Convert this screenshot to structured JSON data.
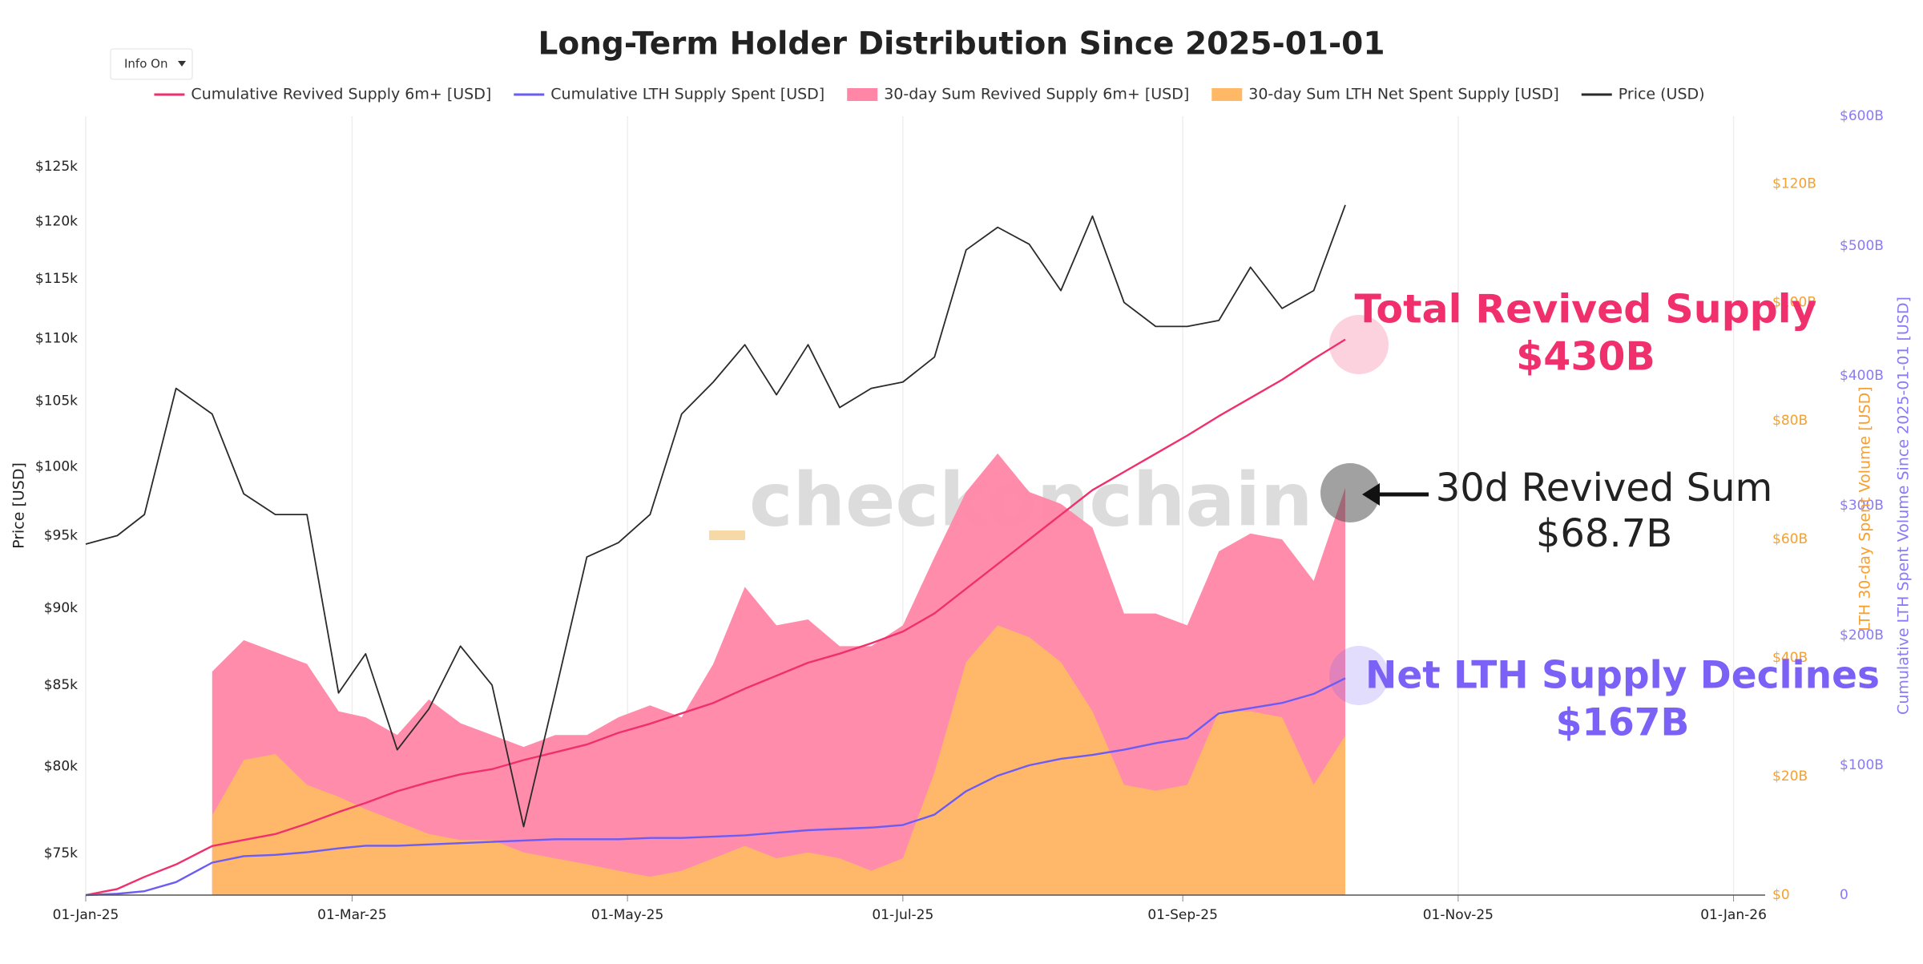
{
  "chart_data": {
    "type": "line",
    "title": "Long-Term Holder Distribution Since 2025-01-01",
    "controls": {
      "info_toggle": "Info On"
    },
    "watermark": "checkonchain",
    "log_y": true,
    "ylabel": "Price [USD]",
    "y2label": "LTH 30-day Spent Volume [USD]",
    "y3label": "Cumulative LTH Spent Volume Since 2025-01-01 [USD]",
    "x": [
      "2025-01-01",
      "2025-01-08",
      "2025-01-14",
      "2025-01-21",
      "2025-01-29",
      "2025-02-05",
      "2025-02-12",
      "2025-02-19",
      "2025-02-26",
      "2025-03-04",
      "2025-03-11",
      "2025-03-18",
      "2025-03-25",
      "2025-04-01",
      "2025-04-08",
      "2025-04-15",
      "2025-04-22",
      "2025-04-29",
      "2025-05-06",
      "2025-05-13",
      "2025-05-20",
      "2025-05-27",
      "2025-06-03",
      "2025-06-10",
      "2025-06-17",
      "2025-06-24",
      "2025-07-01",
      "2025-07-08",
      "2025-07-15",
      "2025-07-22",
      "2025-07-29",
      "2025-08-05",
      "2025-08-12",
      "2025-08-19",
      "2025-08-26",
      "2025-09-02",
      "2025-09-09",
      "2025-09-16",
      "2025-09-23",
      "2025-09-30",
      "2025-10-07"
    ],
    "xlim": [
      "2025-01-01",
      "2026-01-08"
    ],
    "xticks": [
      {
        "value": "2025-01-01",
        "label": "01-Jan-25"
      },
      {
        "value": "2025-03-01",
        "label": "01-Mar-25"
      },
      {
        "value": "2025-05-01",
        "label": "01-May-25"
      },
      {
        "value": "2025-07-01",
        "label": "01-Jul-25"
      },
      {
        "value": "2025-09-01",
        "label": "01-Sep-25"
      },
      {
        "value": "2025-11-01",
        "label": "01-Nov-25"
      },
      {
        "value": "2026-01-01",
        "label": "01-Jan-26"
      }
    ],
    "ylim": [
      72700,
      129800
    ],
    "yticks": [
      {
        "value": 75000,
        "label": "$75k"
      },
      {
        "value": 80000,
        "label": "$80k"
      },
      {
        "value": 85000,
        "label": "$85k"
      },
      {
        "value": 90000,
        "label": "$90k"
      },
      {
        "value": 95000,
        "label": "$95k"
      },
      {
        "value": 100000,
        "label": "$100k"
      },
      {
        "value": 105000,
        "label": "$105k"
      },
      {
        "value": 110000,
        "label": "$110k"
      },
      {
        "value": 115000,
        "label": "$115k"
      },
      {
        "value": 120000,
        "label": "$120k"
      },
      {
        "value": 125000,
        "label": "$125k"
      }
    ],
    "y2lim": [
      0,
      131.4
    ],
    "y2ticks": [
      {
        "value": 0,
        "label": "$0"
      },
      {
        "value": 20,
        "label": "$20B"
      },
      {
        "value": 40,
        "label": "$40B"
      },
      {
        "value": 60,
        "label": "$60B"
      },
      {
        "value": 80,
        "label": "$80B"
      },
      {
        "value": 100,
        "label": "$100B"
      },
      {
        "value": 120,
        "label": "$120B"
      }
    ],
    "y2color": "#f5a030",
    "y3lim": [
      0,
      600
    ],
    "y3ticks": [
      0,
      {
        "value": 100,
        "label": "$100B"
      },
      {
        "value": 200,
        "label": "$200B"
      },
      {
        "value": 300,
        "label": "$300B"
      },
      {
        "value": 400,
        "label": "$400B"
      },
      {
        "value": 500,
        "label": "$500B"
      },
      {
        "value": 600,
        "label": "$600B"
      }
    ],
    "y3color": "#8a7af5",
    "series": [
      {
        "name": "Cumulative Revived Supply 6m+ [USD]",
        "kind": "line",
        "axis": "y3",
        "color": "#f0306c",
        "values": [
          0,
          4.7,
          14,
          23.6,
          37.8,
          42.5,
          47,
          55,
          64,
          71,
          80,
          87,
          93,
          97,
          104,
          110,
          116,
          125,
          132,
          140,
          148,
          159,
          169,
          179,
          186,
          194,
          203,
          217,
          236,
          255,
          274,
          293,
          312,
          326,
          340,
          354,
          369,
          383,
          397,
          413,
          428
        ]
      },
      {
        "name": "Cumulative LTH Supply Spent [USD]",
        "kind": "line",
        "axis": "y3",
        "color": "#6b5cf5",
        "values": [
          0,
          1,
          3,
          10,
          25,
          30,
          31,
          33,
          36,
          38,
          38,
          39,
          40,
          41,
          42,
          43,
          43,
          43,
          44,
          44,
          45,
          46,
          48,
          50,
          51,
          52,
          54,
          62,
          80,
          92,
          100,
          105,
          108,
          112,
          117,
          121,
          140,
          144,
          148,
          155,
          167
        ]
      },
      {
        "name": "30-day Sum Revived Supply 6m+ [USD]",
        "kind": "area",
        "axis": "y2",
        "color": "#ff86a6",
        "values": [
          null,
          null,
          null,
          null,
          37.7,
          43,
          41,
          39,
          31,
          30,
          27,
          33,
          29,
          27,
          25,
          27,
          27,
          30,
          32,
          30,
          39,
          52,
          45.5,
          46.5,
          42,
          42,
          45.5,
          57,
          68,
          74.5,
          68,
          66,
          62,
          47.5,
          47.5,
          45.5,
          58,
          61,
          60,
          53,
          68.7
        ]
      },
      {
        "name": "30-day Sum LTH Net Spent Supply [USD]",
        "kind": "area",
        "axis": "y2",
        "color": "#ffb966",
        "values": [
          null,
          null,
          null,
          null,
          13.4,
          22.8,
          23.8,
          18.6,
          16.6,
          14.5,
          12.4,
          10.3,
          9.3,
          9.3,
          7.2,
          6.2,
          5.2,
          4.1,
          3.1,
          4.1,
          6.2,
          8.3,
          6.2,
          7.2,
          6.2,
          4.1,
          6.2,
          20.7,
          39.3,
          45.5,
          43.5,
          39.3,
          31,
          18.6,
          17.6,
          18.6,
          31,
          31,
          30,
          18.6,
          26.9
        ]
      },
      {
        "name": "Price (USD)",
        "kind": "line",
        "axis": "y",
        "color": "#2a2a2a",
        "values": [
          94400,
          95000,
          96500,
          106000,
          104000,
          98000,
          96500,
          96500,
          84500,
          87000,
          81000,
          83500,
          87500,
          85000,
          76500,
          84500,
          93500,
          94500,
          96500,
          104000,
          106500,
          109500,
          105500,
          109500,
          104500,
          106000,
          106500,
          108500,
          117500,
          119500,
          118000,
          114000,
          120500,
          113000,
          111000,
          111000,
          111500,
          116000,
          112500,
          114000,
          121500
        ]
      }
    ],
    "annotations": [
      {
        "text": "Total Revived Supply",
        "value_text": "$430B",
        "color": "#f0306c"
      },
      {
        "text": "30d Revived Sum",
        "value_text": "$68.7B",
        "color": "#222222"
      },
      {
        "text": "Net LTH Supply Declines",
        "value_text": "$167B",
        "color": "#7b61f5"
      }
    ]
  }
}
